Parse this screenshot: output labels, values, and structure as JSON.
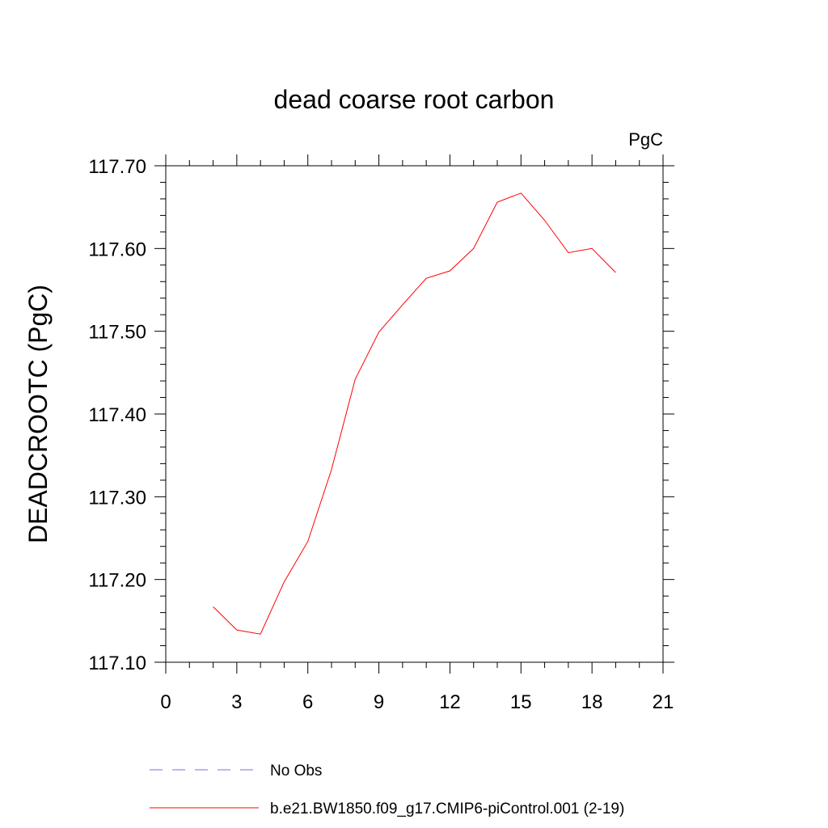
{
  "chart_data": {
    "type": "line",
    "title": "dead coarse root carbon",
    "units_label": "PgC",
    "ylabel": "DEADCROOTC  (PgC)",
    "xlabel": "",
    "xlim": [
      0,
      21
    ],
    "ylim": [
      117.1,
      117.7
    ],
    "x_ticks": [
      0,
      3,
      6,
      9,
      12,
      15,
      18,
      21
    ],
    "x_tick_labels": [
      "0",
      "3",
      "6",
      "9",
      "12",
      "15",
      "18",
      "21"
    ],
    "y_ticks": [
      117.1,
      117.2,
      117.3,
      117.4,
      117.5,
      117.6,
      117.7
    ],
    "y_tick_labels": [
      "117.10",
      "117.20",
      "117.30",
      "117.40",
      "117.50",
      "117.60",
      "117.70"
    ],
    "grid": false,
    "series": [
      {
        "name": "b.e21.BW1850.f09_g17.CMIP6-piControl.001 (2-19)",
        "color": "#ff0000",
        "x": [
          2,
          3,
          4,
          5,
          6,
          7,
          8,
          9,
          10,
          11,
          12,
          13,
          14,
          15,
          16,
          17,
          18,
          19
        ],
        "y": [
          117.167,
          117.139,
          117.134,
          117.197,
          117.246,
          117.333,
          117.442,
          117.499,
          117.532,
          117.564,
          117.573,
          117.6,
          117.656,
          117.667,
          117.634,
          117.595,
          117.6,
          117.571
        ]
      }
    ],
    "legend": {
      "position": "bottom",
      "entries": [
        {
          "label": "No Obs",
          "color": "#7b68ee",
          "style": "dashed"
        },
        {
          "label": "b.e21.BW1850.f09_g17.CMIP6-piControl.001 (2-19)",
          "color": "#ff0000",
          "style": "solid"
        }
      ]
    }
  }
}
